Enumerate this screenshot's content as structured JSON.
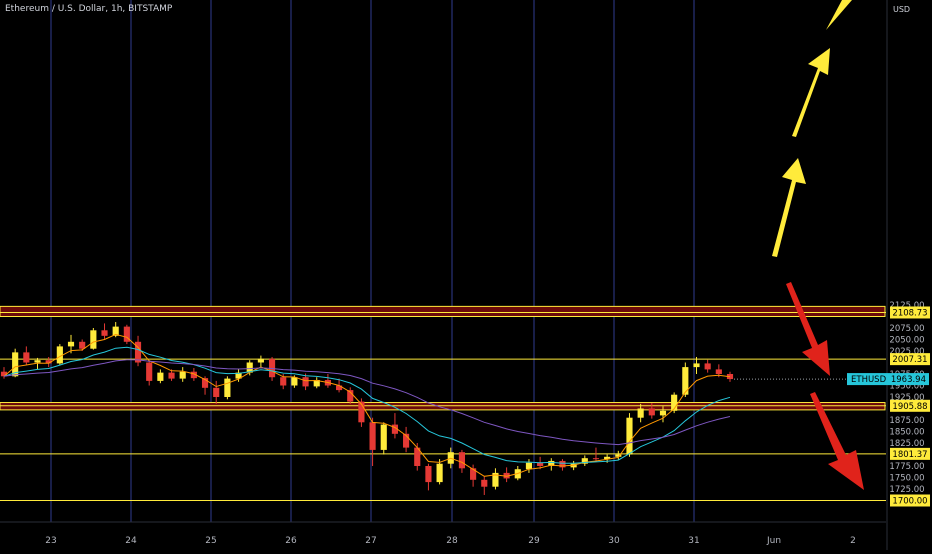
{
  "header": {
    "symbol_title": "Ethereum / U.S. Dollar, 1h, BITSTAMP",
    "currency_unit": "USD"
  },
  "chart_data": {
    "type": "candlestick",
    "symbol": "ETHUSD",
    "timeframe": "1h",
    "x_tick_labels": [
      "23",
      "24",
      "25",
      "26",
      "27",
      "28",
      "29",
      "30",
      "31",
      "Jun",
      "2"
    ],
    "y_ticks": [
      1725,
      1750,
      1775,
      1825,
      1850,
      1875,
      1925,
      1950,
      1975,
      2025,
      2050,
      2075,
      2125
    ],
    "ylim": [
      1692,
      2135
    ],
    "last_price": {
      "label": "ETHUSD",
      "value": "1963.94",
      "numeric": 1963.94,
      "color": "#26c6da"
    },
    "horizontal_levels": [
      {
        "name": "resistance-2108",
        "label": "2108.73",
        "value": 2108.73
      },
      {
        "name": "level-2007",
        "label": "2007.31",
        "value": 2007.31
      },
      {
        "name": "support-1905",
        "label": "1905.88",
        "value": 1905.88
      },
      {
        "name": "level-1801",
        "label": "1801.37",
        "value": 1801.37
      },
      {
        "name": "level-1700",
        "label": "1700.00",
        "value": 1700.0
      }
    ],
    "zones": [
      {
        "name": "zone-2100",
        "low": 2100,
        "high": 2122
      },
      {
        "name": "zone-1905",
        "low": 1897,
        "high": 1913
      }
    ],
    "colors": {
      "background": "#000000",
      "up_candle": "#ffeb3b",
      "down_candle": "#e53935",
      "level_line": "#ffeb3b",
      "zone_fill": "#6b0a0a",
      "ma_fast": "#ff9800",
      "ma_mid": "#26c6da",
      "ma_slow": "#7e57c2",
      "grid_vertical": "#2f3c8f",
      "bull_arrow": "#ffeb3b",
      "bear_arrow": "#e0231b"
    },
    "candles": [
      {
        "o": 1980,
        "h": 1990,
        "l": 1965,
        "c": 1970
      },
      {
        "o": 1970,
        "h": 2030,
        "l": 1968,
        "c": 2022
      },
      {
        "o": 2022,
        "h": 2035,
        "l": 1995,
        "c": 2000
      },
      {
        "o": 2000,
        "h": 2010,
        "l": 1985,
        "c": 2005
      },
      {
        "o": 2005,
        "h": 2012,
        "l": 1990,
        "c": 1998
      },
      {
        "o": 1998,
        "h": 2040,
        "l": 1995,
        "c": 2035
      },
      {
        "o": 2035,
        "h": 2060,
        "l": 2020,
        "c": 2045
      },
      {
        "o": 2045,
        "h": 2050,
        "l": 2025,
        "c": 2030
      },
      {
        "o": 2030,
        "h": 2075,
        "l": 2028,
        "c": 2070
      },
      {
        "o": 2070,
        "h": 2085,
        "l": 2050,
        "c": 2058
      },
      {
        "o": 2058,
        "h": 2088,
        "l": 2055,
        "c": 2078
      },
      {
        "o": 2078,
        "h": 2082,
        "l": 2040,
        "c": 2045
      },
      {
        "o": 2045,
        "h": 2058,
        "l": 1992,
        "c": 2000
      },
      {
        "o": 2000,
        "h": 2005,
        "l": 1950,
        "c": 1960
      },
      {
        "o": 1960,
        "h": 1985,
        "l": 1955,
        "c": 1978
      },
      {
        "o": 1978,
        "h": 1985,
        "l": 1960,
        "c": 1965
      },
      {
        "o": 1965,
        "h": 1990,
        "l": 1958,
        "c": 1980
      },
      {
        "o": 1980,
        "h": 1988,
        "l": 1960,
        "c": 1966
      },
      {
        "o": 1966,
        "h": 1970,
        "l": 1930,
        "c": 1945
      },
      {
        "o": 1945,
        "h": 1960,
        "l": 1910,
        "c": 1925
      },
      {
        "o": 1925,
        "h": 1970,
        "l": 1920,
        "c": 1965
      },
      {
        "o": 1965,
        "h": 1985,
        "l": 1958,
        "c": 1978
      },
      {
        "o": 1978,
        "h": 2005,
        "l": 1972,
        "c": 2000
      },
      {
        "o": 2000,
        "h": 2015,
        "l": 1990,
        "c": 2008
      },
      {
        "o": 2008,
        "h": 2012,
        "l": 1960,
        "c": 1968
      },
      {
        "o": 1968,
        "h": 1975,
        "l": 1942,
        "c": 1950
      },
      {
        "o": 1950,
        "h": 1972,
        "l": 1945,
        "c": 1968
      },
      {
        "o": 1968,
        "h": 1976,
        "l": 1940,
        "c": 1948
      },
      {
        "o": 1948,
        "h": 1968,
        "l": 1944,
        "c": 1962
      },
      {
        "o": 1962,
        "h": 1975,
        "l": 1945,
        "c": 1950
      },
      {
        "o": 1950,
        "h": 1965,
        "l": 1935,
        "c": 1940
      },
      {
        "o": 1940,
        "h": 1946,
        "l": 1910,
        "c": 1915
      },
      {
        "o": 1915,
        "h": 1922,
        "l": 1860,
        "c": 1870
      },
      {
        "o": 1870,
        "h": 1880,
        "l": 1775,
        "c": 1810
      },
      {
        "o": 1810,
        "h": 1870,
        "l": 1800,
        "c": 1865
      },
      {
        "o": 1865,
        "h": 1890,
        "l": 1835,
        "c": 1845
      },
      {
        "o": 1845,
        "h": 1860,
        "l": 1805,
        "c": 1815
      },
      {
        "o": 1815,
        "h": 1825,
        "l": 1765,
        "c": 1775
      },
      {
        "o": 1775,
        "h": 1780,
        "l": 1722,
        "c": 1740
      },
      {
        "o": 1740,
        "h": 1790,
        "l": 1735,
        "c": 1780
      },
      {
        "o": 1780,
        "h": 1815,
        "l": 1770,
        "c": 1805
      },
      {
        "o": 1805,
        "h": 1810,
        "l": 1760,
        "c": 1770
      },
      {
        "o": 1770,
        "h": 1778,
        "l": 1730,
        "c": 1745
      },
      {
        "o": 1745,
        "h": 1752,
        "l": 1712,
        "c": 1730
      },
      {
        "o": 1730,
        "h": 1770,
        "l": 1724,
        "c": 1760
      },
      {
        "o": 1760,
        "h": 1772,
        "l": 1740,
        "c": 1748
      },
      {
        "o": 1748,
        "h": 1775,
        "l": 1744,
        "c": 1768
      },
      {
        "o": 1768,
        "h": 1790,
        "l": 1760,
        "c": 1782
      },
      {
        "o": 1782,
        "h": 1795,
        "l": 1768,
        "c": 1775
      },
      {
        "o": 1775,
        "h": 1792,
        "l": 1765,
        "c": 1786
      },
      {
        "o": 1786,
        "h": 1790,
        "l": 1765,
        "c": 1772
      },
      {
        "o": 1772,
        "h": 1786,
        "l": 1766,
        "c": 1780
      },
      {
        "o": 1780,
        "h": 1798,
        "l": 1775,
        "c": 1792
      },
      {
        "o": 1792,
        "h": 1815,
        "l": 1785,
        "c": 1790
      },
      {
        "o": 1790,
        "h": 1800,
        "l": 1782,
        "c": 1795
      },
      {
        "o": 1795,
        "h": 1808,
        "l": 1788,
        "c": 1800
      },
      {
        "o": 1800,
        "h": 1890,
        "l": 1795,
        "c": 1880
      },
      {
        "o": 1880,
        "h": 1910,
        "l": 1870,
        "c": 1900
      },
      {
        "o": 1900,
        "h": 1912,
        "l": 1878,
        "c": 1885
      },
      {
        "o": 1885,
        "h": 1905,
        "l": 1870,
        "c": 1895
      },
      {
        "o": 1895,
        "h": 1935,
        "l": 1890,
        "c": 1930
      },
      {
        "o": 1930,
        "h": 2000,
        "l": 1925,
        "c": 1990
      },
      {
        "o": 1990,
        "h": 2012,
        "l": 1975,
        "c": 1998
      },
      {
        "o": 1998,
        "h": 2006,
        "l": 1978,
        "c": 1985
      },
      {
        "o": 1985,
        "h": 1996,
        "l": 1968,
        "c": 1975
      },
      {
        "o": 1975,
        "h": 1980,
        "l": 1958,
        "c": 1964
      }
    ]
  },
  "annotations": {
    "arrows": [
      {
        "name": "bull-arrow-top",
        "direction": "up",
        "color": "#ffeb3b"
      },
      {
        "name": "bull-arrow-upper",
        "direction": "up",
        "color": "#ffeb3b"
      },
      {
        "name": "bull-arrow-lower",
        "direction": "up",
        "color": "#ffeb3b"
      },
      {
        "name": "bear-arrow-upper",
        "direction": "down",
        "color": "#e0231b"
      },
      {
        "name": "bear-arrow-lower",
        "direction": "down",
        "color": "#e0231b"
      }
    ]
  }
}
